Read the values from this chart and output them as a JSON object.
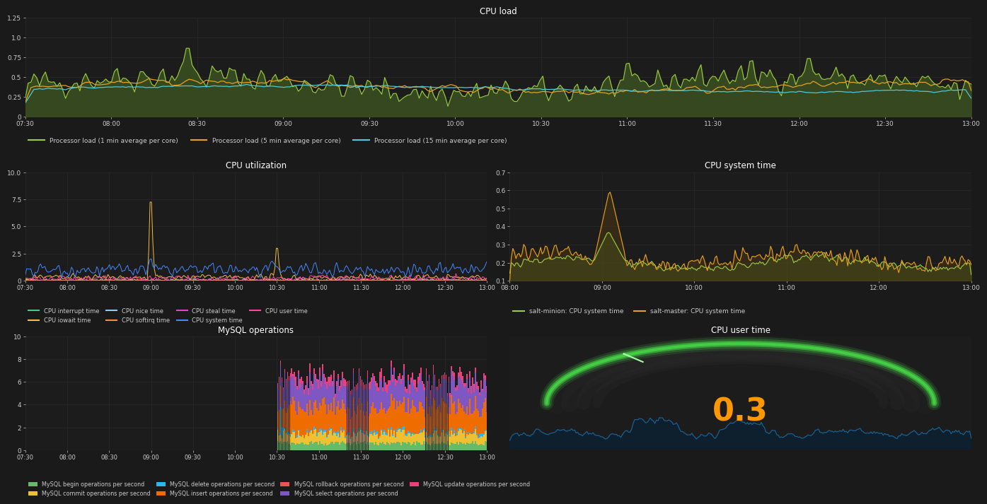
{
  "bg_color": "#1a1a1a",
  "panel_bg": "#1c1c1c",
  "grid_color": "#2d2d2d",
  "text_color": "#cccccc",
  "title_color": "#ffffff",
  "cpu_load": {
    "title": "CPU load",
    "ylim": [
      0,
      1.25
    ],
    "yticks": [
      0,
      0.25,
      0.5,
      0.75,
      1.0,
      1.25
    ],
    "fill_color": "#3a5020",
    "line1_color": "#9dcc44",
    "line2_color": "#e8a020",
    "line3_color": "#50c8d8",
    "legend": [
      "Processor load (1 min average per core)",
      "Processor load (5 min average per core)",
      "Processor load (15 min average per core)"
    ]
  },
  "cpu_util": {
    "title": "CPU utilization",
    "ylim": [
      0,
      10.0
    ],
    "yticks": [
      0,
      2.5,
      5.0,
      7.5,
      10.0
    ],
    "colors": [
      "#44cc88",
      "#f0c040",
      "#88ccff",
      "#ff8844",
      "#dd44dd",
      "#4488ff",
      "#ff44aa"
    ],
    "legend": [
      "CPU interrupt time",
      "CPU iowait time",
      "CPU nice time",
      "CPU softirq time",
      "CPU steal time",
      "CPU system time",
      "CPU user time"
    ]
  },
  "cpu_sys_time": {
    "title": "CPU system time",
    "ylim": [
      0.1,
      0.7
    ],
    "yticks": [
      0.1,
      0.2,
      0.3,
      0.4,
      0.5,
      0.6,
      0.7
    ],
    "line1_color": "#9dcc44",
    "line2_color": "#e8a020",
    "fill1_color": "#3a5020",
    "fill2_color": "#5a4010",
    "legend": [
      "salt-minion: CPU system time",
      "salt-master: CPU system time"
    ]
  },
  "mysql_ops": {
    "title": "MySQL operations",
    "ylim": [
      0,
      10
    ],
    "yticks": [
      0,
      2,
      4,
      6,
      8,
      10
    ],
    "colors": [
      "#66bb6a",
      "#f0c030",
      "#29b6f6",
      "#ef6c00",
      "#ef5350",
      "#7e57c2",
      "#ec407a"
    ],
    "legend": [
      "MySQL begin operations per second",
      "MySQL commit operations per second",
      "MySQL delete operations per second",
      "MySQL insert operations per second",
      "MySQL rollback operations per second",
      "MySQL select operations per second",
      "MySQL update operations per second"
    ]
  },
  "cpu_user_time": {
    "title": "CPU user time",
    "value": "0.3",
    "gauge_color": "#44cc44",
    "value_color": "#ff9800",
    "line_color": "#1a6090",
    "fill_color": "#0d2030"
  },
  "time_labels_full": [
    "07:30",
    "08:00",
    "08:30",
    "09:00",
    "09:30",
    "10:00",
    "10:30",
    "11:00",
    "11:30",
    "12:00",
    "12:30",
    "13:00"
  ],
  "time_labels_mysql": [
    "07:30",
    "08:00",
    "08:30",
    "09:00",
    "09:30",
    "10:00",
    "10:30",
    "11:00",
    "11:30",
    "12:00",
    "12:30"
  ],
  "time_labels_sys": [
    "08:00",
    "09:00",
    "10:00",
    "11:00",
    "12:00",
    "13:00"
  ]
}
